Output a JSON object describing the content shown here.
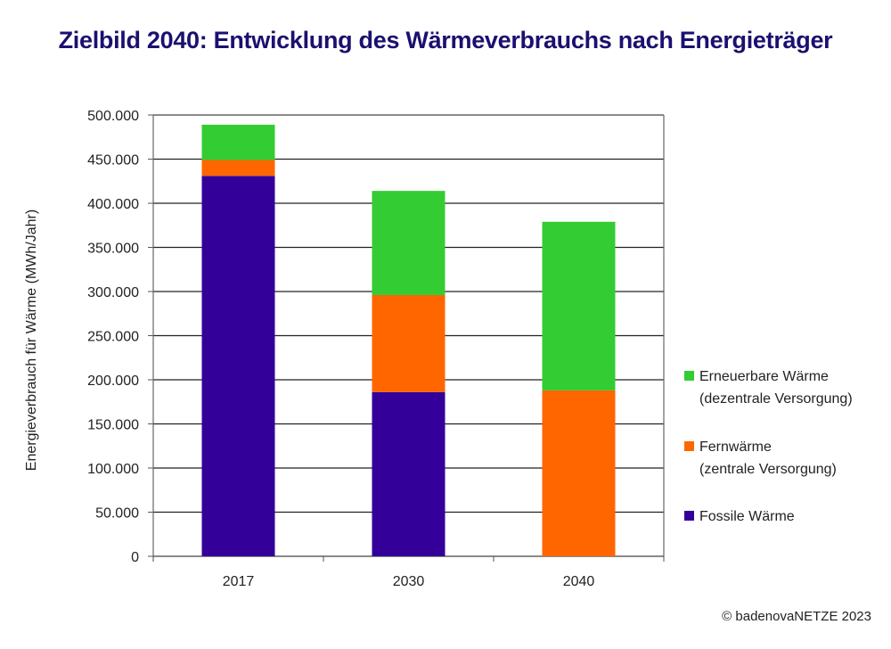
{
  "chart_data": {
    "type": "bar",
    "stacked": true,
    "title": "Zielbild 2040: Entwicklung des Wärmeverbrauchs nach Energieträger",
    "xlabel": "",
    "ylabel": "Energieverbrauch für Wärme (MWh/Jahr)",
    "ylim": [
      0,
      500000
    ],
    "yticks": [
      0,
      50000,
      100000,
      150000,
      200000,
      250000,
      300000,
      350000,
      400000,
      450000,
      500000
    ],
    "ytick_labels": [
      "0",
      "50.000",
      "100.000",
      "150.000",
      "200.000",
      "250.000",
      "300.000",
      "350.000",
      "400.000",
      "450.000",
      "500.000"
    ],
    "grid": true,
    "legend_position": "right",
    "categories": [
      "2017",
      "2030",
      "2040"
    ],
    "series": [
      {
        "name": "Fossile Wärme",
        "legend_lines": [
          "Fossile Wärme"
        ],
        "color": "#330099",
        "values": [
          431000,
          186000,
          0
        ]
      },
      {
        "name": "Fernwärme (zentrale Versorgung)",
        "legend_lines": [
          "Fernwärme",
          "(zentrale Versorgung)"
        ],
        "color": "#ff6600",
        "values": [
          18000,
          110000,
          188000
        ]
      },
      {
        "name": "Erneuerbare Wärme (dezentrale Versorgung)",
        "legend_lines": [
          "Erneuerbare Wärme",
          "(dezentrale Versorgung)"
        ],
        "color": "#33cc33",
        "values": [
          40000,
          118000,
          191000
        ]
      }
    ]
  },
  "credit": "© badenovaNETZE 2023"
}
